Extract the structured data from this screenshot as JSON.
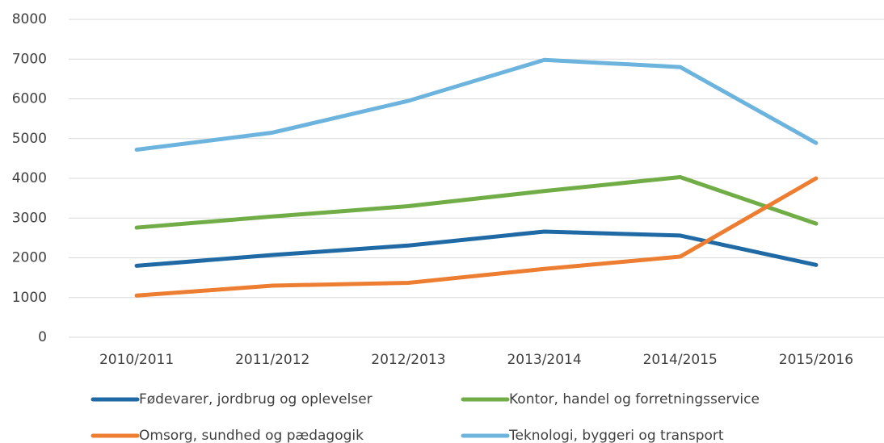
{
  "chart_data": {
    "type": "line",
    "categories": [
      "2010/2011",
      "2011/2012",
      "2012/2013",
      "2013/2014",
      "2014/2015",
      "2015/2016"
    ],
    "series": [
      {
        "name": "Fødevarer, jordbrug og oplevelser",
        "color": "#1f6aa5",
        "values": [
          1800,
          2070,
          2310,
          2660,
          2560,
          1820
        ]
      },
      {
        "name": "Kontor, handel og forretningsservice",
        "color": "#70ad47",
        "values": [
          2760,
          3040,
          3300,
          3680,
          4030,
          2860
        ]
      },
      {
        "name": "Omsorg, sundhed og pædagogik",
        "color": "#ed7d31",
        "values": [
          1050,
          1300,
          1370,
          1720,
          2030,
          4000
        ]
      },
      {
        "name": "Teknologi, byggeri og transport",
        "color": "#6cb4de",
        "values": [
          4720,
          5150,
          5950,
          6980,
          6800,
          4890
        ]
      }
    ],
    "ylim": [
      0,
      8000
    ],
    "yticks": [
      0,
      1000,
      2000,
      3000,
      4000,
      5000,
      6000,
      7000,
      8000
    ],
    "grid": true,
    "legend": "bottom"
  }
}
